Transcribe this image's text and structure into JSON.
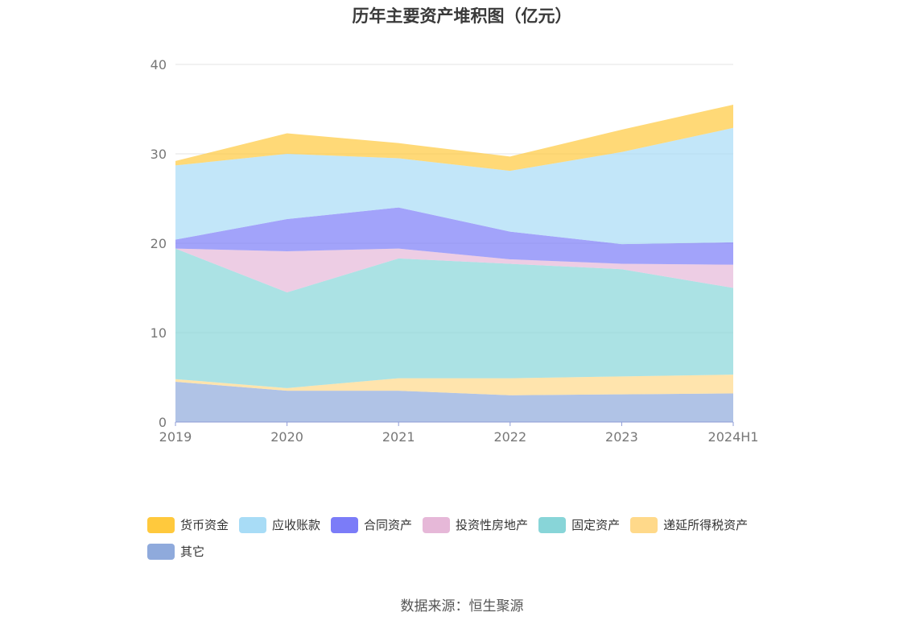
{
  "chart_data": {
    "type": "area",
    "stacked": true,
    "title": "历年主要资产堆积图（亿元）",
    "categories": [
      "2019",
      "2020",
      "2021",
      "2022",
      "2023",
      "2024H1"
    ],
    "ylim": [
      0,
      40
    ],
    "yticks": [
      0,
      10,
      20,
      30,
      40
    ],
    "grid": true,
    "legend_position": "bottom",
    "series": [
      {
        "name": "其它",
        "color": "#8faadc",
        "values": [
          4.5,
          3.5,
          3.5,
          3.0,
          3.1,
          3.2
        ]
      },
      {
        "name": "递延所得税资产",
        "color": "#ffd98a",
        "values": [
          0.3,
          0.3,
          1.4,
          1.9,
          2.0,
          2.1
        ]
      },
      {
        "name": "固定资产",
        "color": "#88d5d8",
        "values": [
          14.6,
          10.7,
          13.4,
          12.8,
          12.0,
          9.7
        ]
      },
      {
        "name": "投资性房地产",
        "color": "#e6b8d8",
        "values": [
          0.0,
          4.6,
          1.1,
          0.5,
          0.6,
          2.6
        ]
      },
      {
        "name": "合同资产",
        "color": "#7b7cf8",
        "values": [
          1.0,
          3.6,
          4.6,
          3.1,
          2.2,
          2.5
        ]
      },
      {
        "name": "应收账款",
        "color": "#a8dcf6",
        "values": [
          8.3,
          7.3,
          5.5,
          6.8,
          10.3,
          12.8
        ]
      },
      {
        "name": "货币资金",
        "color": "#ffc93d",
        "values": [
          0.5,
          2.3,
          1.7,
          1.6,
          2.5,
          2.6
        ]
      }
    ]
  },
  "source_text": "数据来源：恒生聚源"
}
